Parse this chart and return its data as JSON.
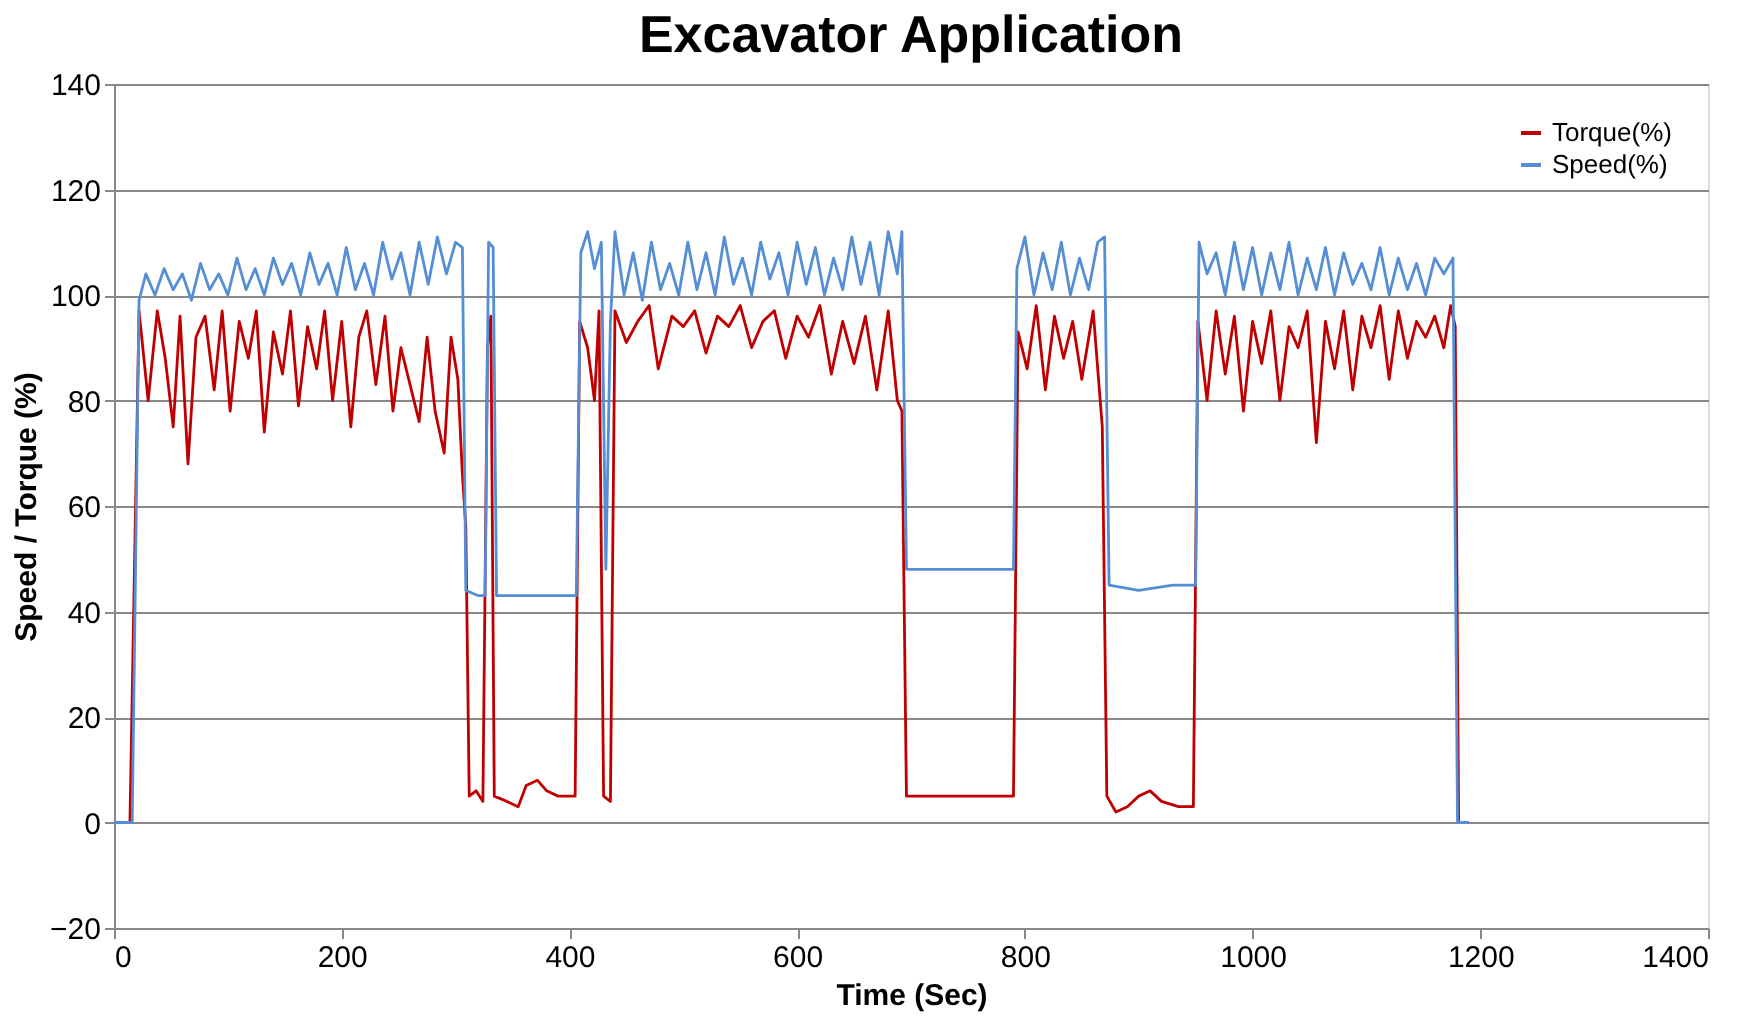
{
  "chart_data": {
    "type": "line",
    "title": "Excavator Application",
    "xlabel": "Time (Sec)",
    "ylabel": "Speed / Torque (%)",
    "xlim": [
      0,
      1400
    ],
    "xticks": [
      0,
      200,
      400,
      600,
      800,
      1000,
      1200,
      1400
    ],
    "ylim": [
      -20,
      140
    ],
    "yticks": [
      -20,
      0,
      20,
      40,
      60,
      80,
      100,
      120,
      140
    ],
    "grid": "y",
    "legend": "top right",
    "marker": "none",
    "line_style": "solid",
    "series": [
      {
        "name": "Torque(%)",
        "color": "#c00000",
        "x": [
          0,
          14,
          22,
          30,
          38,
          45,
          52,
          58,
          65,
          72,
          80,
          88,
          95,
          102,
          110,
          118,
          125,
          132,
          140,
          148,
          155,
          162,
          170,
          178,
          185,
          192,
          200,
          208,
          215,
          222,
          230,
          238,
          245,
          252,
          260,
          268,
          275,
          282,
          290,
          296,
          302,
          306,
          309,
          312,
          318,
          324,
          328,
          331,
          334,
          345,
          355,
          362,
          372,
          380,
          390,
          405,
          409,
          416,
          422,
          426,
          430,
          436,
          440,
          450,
          460,
          470,
          478,
          490,
          500,
          510,
          520,
          530,
          540,
          550,
          560,
          570,
          580,
          590,
          600,
          610,
          620,
          630,
          640,
          650,
          660,
          670,
          680,
          688,
          692,
          696,
          720,
          760,
          790,
          794,
          802,
          810,
          818,
          826,
          834,
          842,
          850,
          860,
          868,
          872,
          880,
          890,
          900,
          910,
          920,
          935,
          948,
          952,
          960,
          968,
          976,
          984,
          992,
          1000,
          1008,
          1016,
          1024,
          1032,
          1040,
          1048,
          1056,
          1064,
          1072,
          1080,
          1088,
          1096,
          1104,
          1112,
          1120,
          1128,
          1136,
          1144,
          1152,
          1160,
          1168,
          1174,
          1178,
          1181,
          1190
        ],
        "values": [
          0,
          0,
          97,
          80,
          97,
          88,
          75,
          96,
          68,
          92,
          96,
          82,
          97,
          78,
          95,
          88,
          97,
          74,
          93,
          85,
          97,
          79,
          94,
          86,
          97,
          80,
          95,
          75,
          92,
          97,
          83,
          96,
          78,
          90,
          83,
          76,
          92,
          78,
          70,
          92,
          84,
          66,
          56,
          5,
          6,
          4,
          90,
          96,
          5,
          4,
          3,
          7,
          8,
          6,
          5,
          5,
          95,
          90,
          80,
          97,
          5,
          4,
          97,
          91,
          95,
          98,
          86,
          96,
          94,
          97,
          89,
          96,
          94,
          98,
          90,
          95,
          97,
          88,
          96,
          92,
          98,
          85,
          95,
          87,
          96,
          82,
          97,
          80,
          78,
          5,
          5,
          5,
          5,
          93,
          86,
          98,
          82,
          96,
          88,
          95,
          84,
          97,
          75,
          5,
          2,
          3,
          5,
          6,
          4,
          3,
          3,
          95,
          80,
          97,
          85,
          96,
          78,
          95,
          87,
          97,
          80,
          94,
          90,
          97,
          72,
          95,
          86,
          97,
          82,
          96,
          90,
          98,
          84,
          97,
          88,
          95,
          92,
          96,
          90,
          98,
          94,
          0,
          0
        ]
      },
      {
        "name": "Speed(%)",
        "color": "#558ed5",
        "x": [
          0,
          16,
          22,
          28,
          36,
          44,
          52,
          60,
          68,
          76,
          84,
          92,
          100,
          108,
          116,
          124,
          132,
          140,
          148,
          156,
          164,
          172,
          180,
          188,
          196,
          204,
          212,
          220,
          228,
          236,
          244,
          252,
          260,
          268,
          276,
          284,
          292,
          300,
          306,
          309,
          320,
          326,
          329,
          333,
          336,
          360,
          380,
          400,
          406,
          410,
          416,
          422,
          428,
          432,
          436,
          440,
          448,
          456,
          464,
          472,
          480,
          488,
          496,
          504,
          512,
          520,
          528,
          536,
          544,
          552,
          560,
          568,
          576,
          584,
          592,
          600,
          608,
          616,
          624,
          632,
          640,
          648,
          656,
          664,
          672,
          680,
          688,
          692,
          696,
          740,
          790,
          793,
          800,
          808,
          816,
          824,
          832,
          840,
          848,
          856,
          864,
          870,
          874,
          900,
          930,
          950,
          953,
          960,
          968,
          976,
          984,
          992,
          1000,
          1008,
          1016,
          1024,
          1032,
          1040,
          1048,
          1056,
          1064,
          1072,
          1080,
          1088,
          1096,
          1104,
          1112,
          1120,
          1128,
          1136,
          1144,
          1152,
          1160,
          1168,
          1176,
          1180,
          1190
        ],
        "values": [
          0,
          0,
          99,
          104,
          100,
          105,
          101,
          104,
          99,
          106,
          101,
          104,
          100,
          107,
          101,
          105,
          100,
          107,
          102,
          106,
          100,
          108,
          102,
          106,
          100,
          109,
          101,
          106,
          100,
          110,
          103,
          108,
          100,
          110,
          102,
          111,
          104,
          110,
          109,
          44,
          43,
          43,
          110,
          109,
          43,
          43,
          43,
          43,
          43,
          108,
          112,
          105,
          110,
          48,
          95,
          112,
          100,
          108,
          99,
          110,
          101,
          106,
          100,
          110,
          101,
          108,
          100,
          111,
          102,
          107,
          100,
          110,
          103,
          108,
          100,
          110,
          102,
          109,
          100,
          107,
          101,
          111,
          102,
          110,
          100,
          112,
          104,
          112,
          48,
          48,
          48,
          105,
          111,
          100,
          108,
          101,
          110,
          100,
          107,
          101,
          110,
          111,
          45,
          44,
          45,
          45,
          110,
          104,
          108,
          100,
          110,
          101,
          109,
          100,
          108,
          101,
          110,
          100,
          107,
          101,
          109,
          100,
          108,
          102,
          106,
          101,
          109,
          100,
          107,
          101,
          106,
          100,
          107,
          104,
          107,
          0,
          0
        ]
      }
    ]
  }
}
